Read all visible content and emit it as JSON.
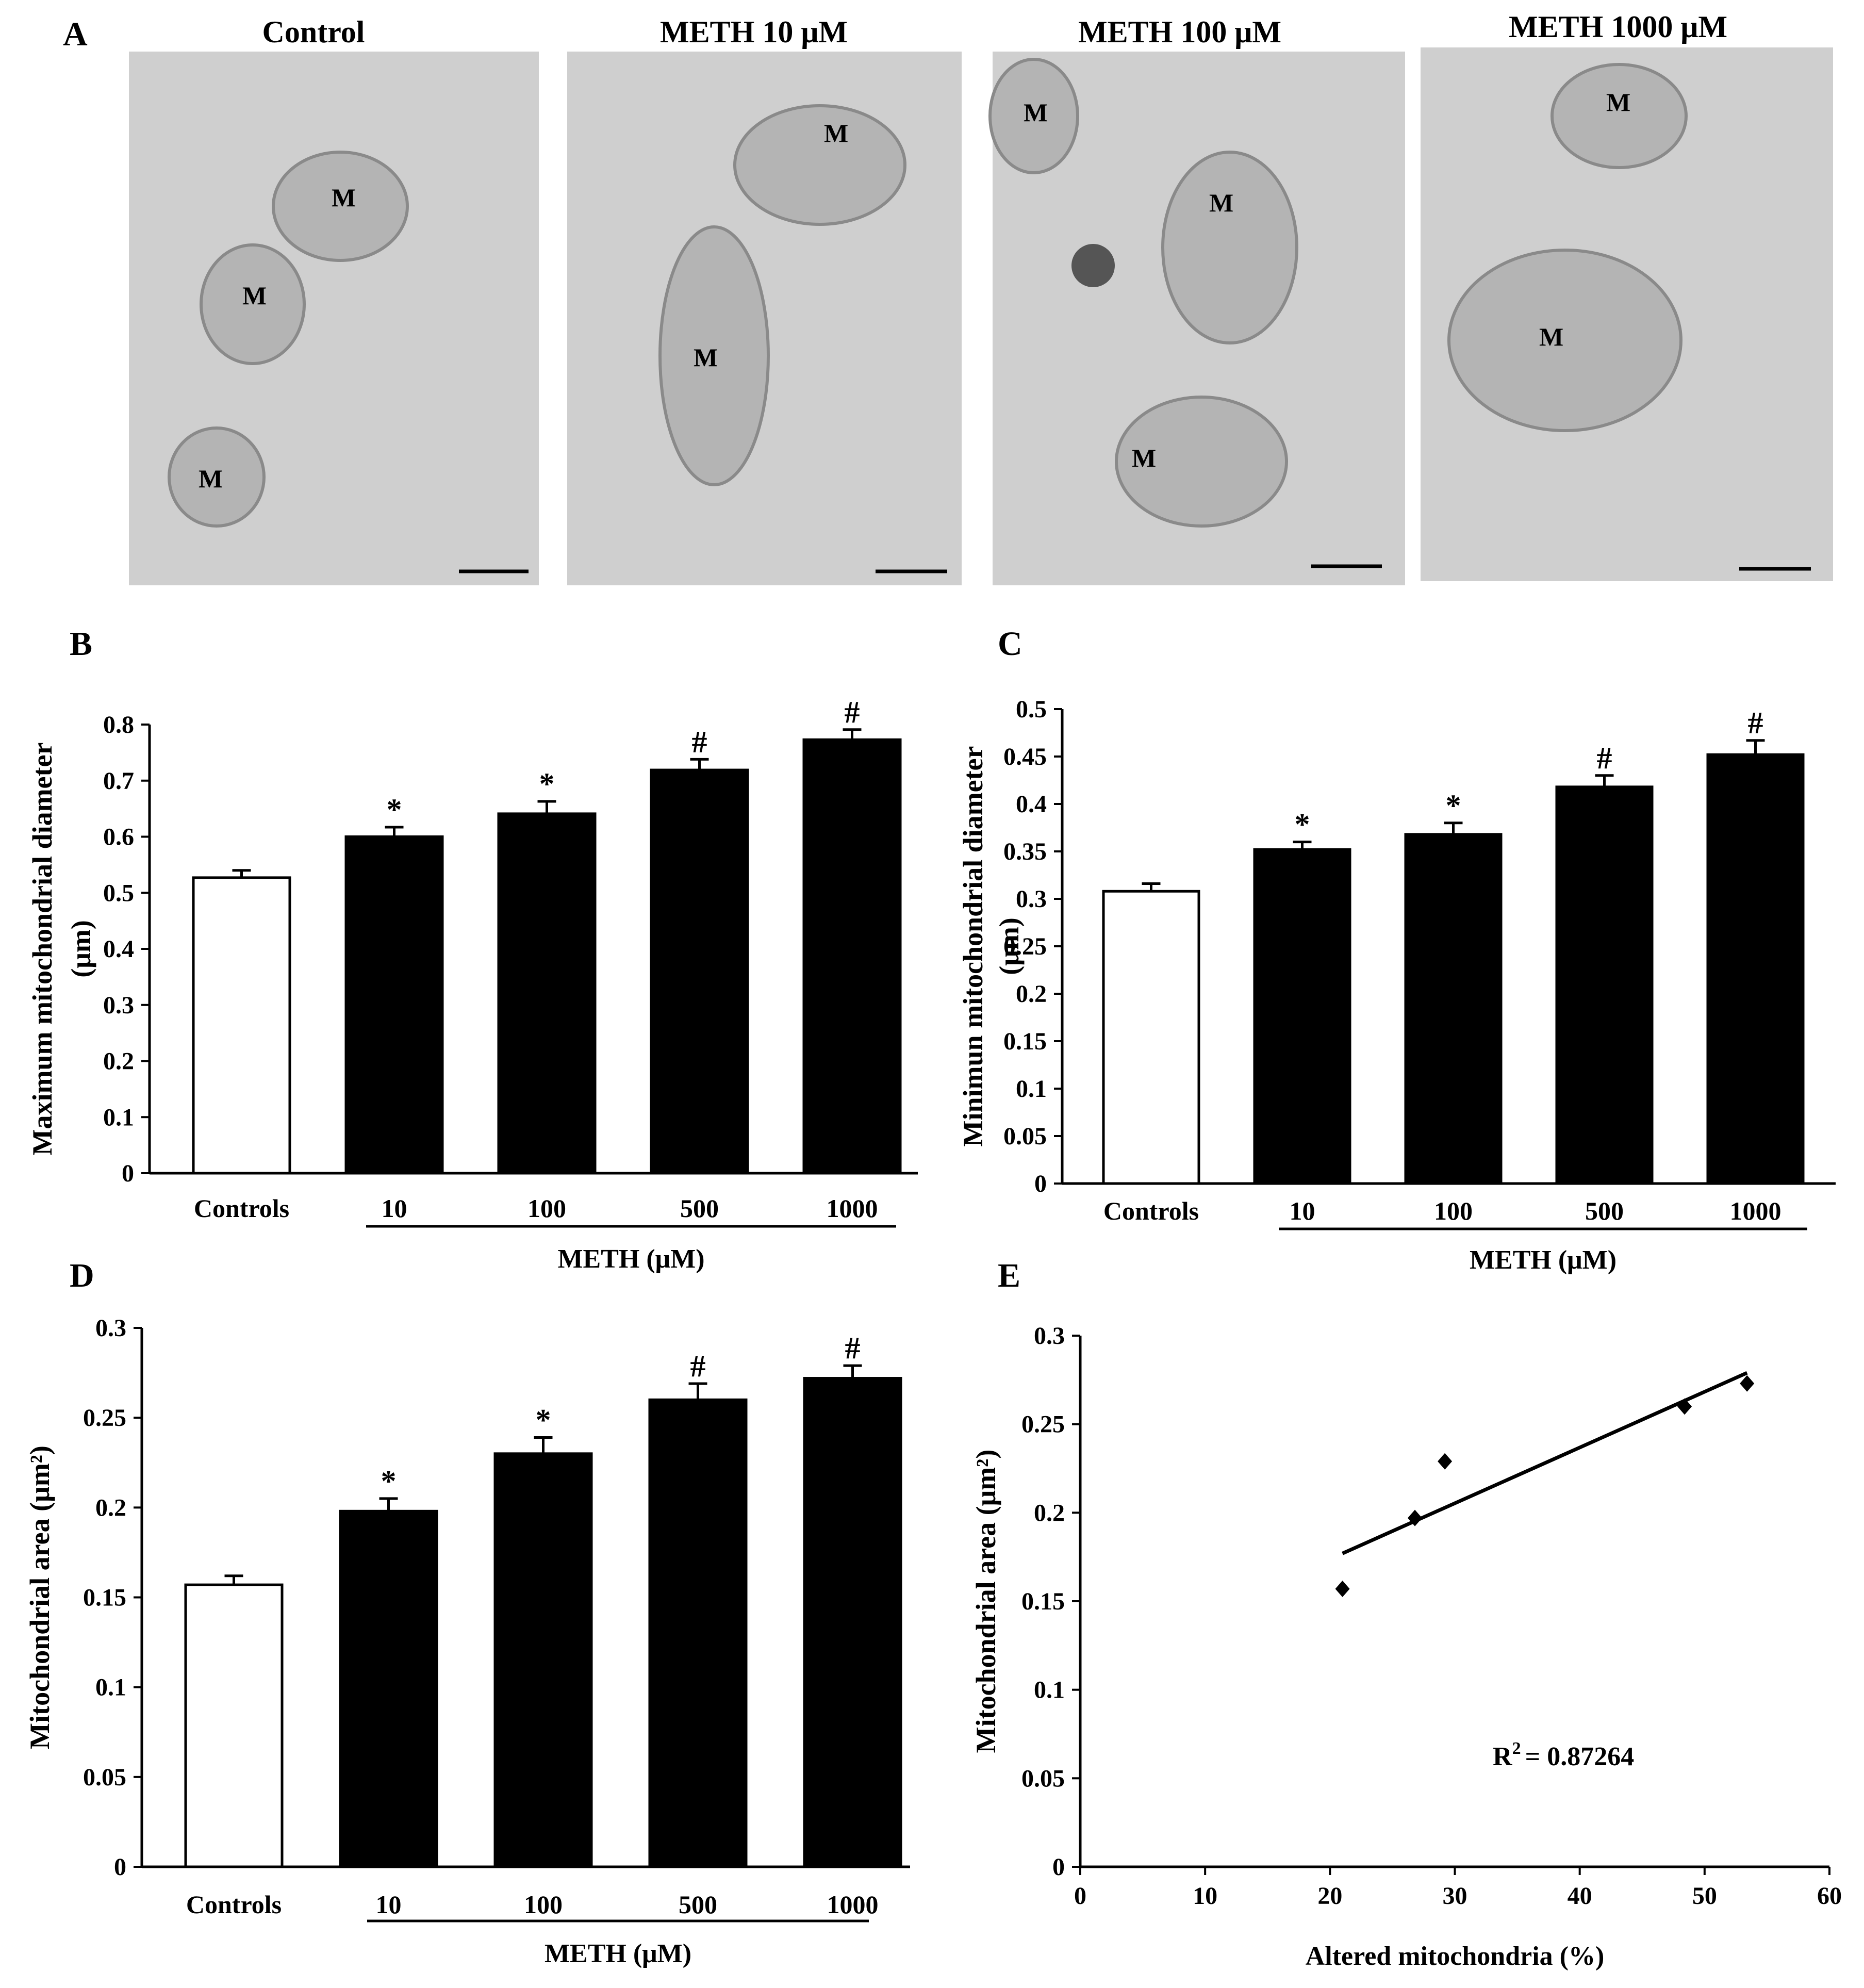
{
  "panels": {
    "A": {
      "letter": "A",
      "micrographs": [
        {
          "title": "Control",
          "labels": [
            "M",
            "M",
            "M"
          ]
        },
        {
          "title": "METH 10 μM",
          "labels": [
            "M",
            "M"
          ]
        },
        {
          "title": "METH 100 μM",
          "labels": [
            "M",
            "M",
            "M"
          ]
        },
        {
          "title": "METH 1000 μM",
          "labels": [
            "M",
            "M"
          ]
        }
      ]
    },
    "B": {
      "letter": "B"
    },
    "C": {
      "letter": "C"
    },
    "D": {
      "letter": "D"
    },
    "E": {
      "letter": "E",
      "annotation_prefix": "R",
      "annotation_sup": "2",
      "annotation_value": "=  0.87264"
    }
  },
  "colors": {
    "control_bar": "#ffffff",
    "meth_bar": "#000000",
    "micrograph_bg": "#cfcfcf",
    "micrograph_membrane": "#8a8a8a"
  },
  "chart_data": [
    {
      "id": "B",
      "type": "bar",
      "categories": [
        "Controls",
        "10",
        "100",
        "500",
        "1000"
      ],
      "values": [
        0.527,
        0.6,
        0.641,
        0.719,
        0.773
      ],
      "errors": [
        0.013,
        0.017,
        0.022,
        0.019,
        0.018
      ],
      "markers": [
        "",
        "*",
        "*",
        "#",
        "#"
      ],
      "ylabel_lines": [
        "Maximum  mitochondrial diameter",
        "(μm)"
      ],
      "xlabel": "METH (μM)",
      "ylim": [
        0,
        0.8
      ],
      "yticks": [
        "0",
        "0.1",
        "0.2",
        "0.3",
        "0.4",
        "0.5",
        "0.6",
        "0.7",
        "0.8"
      ]
    },
    {
      "id": "C",
      "type": "bar",
      "categories": [
        "Controls",
        "10",
        "100",
        "500",
        "1000"
      ],
      "values": [
        0.308,
        0.352,
        0.368,
        0.418,
        0.452
      ],
      "errors": [
        0.008,
        0.008,
        0.012,
        0.012,
        0.015
      ],
      "markers": [
        "",
        "*",
        "*",
        "#",
        "#"
      ],
      "ylabel_lines": [
        "Minimun mitochondrial diameter",
        "(μm)"
      ],
      "xlabel": "METH (μM)",
      "ylim": [
        0,
        0.5
      ],
      "yticks": [
        "0",
        "0.05",
        "0.1",
        "0.15",
        "0.2",
        "0.25",
        "0.3",
        "0.35",
        "0.4",
        "0.45",
        "0.5"
      ]
    },
    {
      "id": "D",
      "type": "bar",
      "categories": [
        "Controls",
        "10",
        "100",
        "500",
        "1000"
      ],
      "values": [
        0.157,
        0.198,
        0.23,
        0.26,
        0.272
      ],
      "errors": [
        0.005,
        0.007,
        0.009,
        0.009,
        0.007
      ],
      "markers": [
        "",
        "*",
        "*",
        "#",
        "#"
      ],
      "ylabel_lines": [
        "Mitochondrial area  (μm²)"
      ],
      "xlabel": "METH (μM)",
      "ylim": [
        0,
        0.3
      ],
      "yticks": [
        "0",
        "0.05",
        "0.1",
        "0.15",
        "0.2",
        "0.25",
        "0.3"
      ]
    },
    {
      "id": "E",
      "type": "scatter",
      "points": [
        [
          21,
          0.157
        ],
        [
          26.8,
          0.197
        ],
        [
          29.2,
          0.229
        ],
        [
          48.4,
          0.26
        ],
        [
          53.4,
          0.273
        ]
      ],
      "fit_line": [
        [
          21,
          0.177
        ],
        [
          53.4,
          0.279
        ]
      ],
      "ylabel_lines": [
        "Mitochondrial area  (μm²)"
      ],
      "xlabel": "Altered mitochondria (%)",
      "xlim": [
        0,
        60
      ],
      "ylim": [
        0,
        0.3
      ],
      "xticks": [
        "0",
        "10",
        "20",
        "30",
        "40",
        "50",
        "60"
      ],
      "yticks": [
        "0",
        "0.05",
        "0.1",
        "0.15",
        "0.2",
        "0.25",
        "0.3"
      ]
    }
  ]
}
